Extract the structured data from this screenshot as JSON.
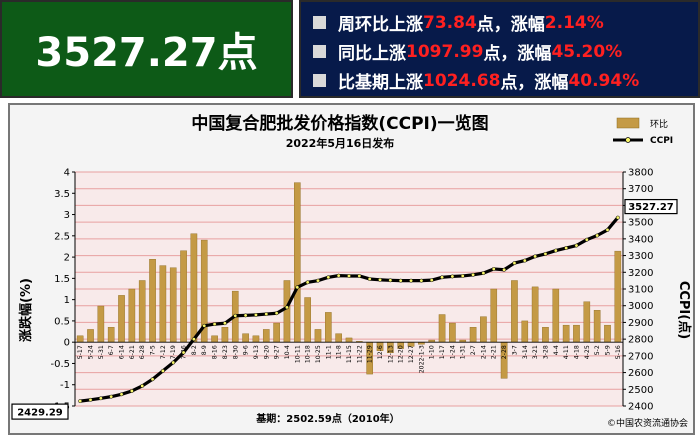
{
  "banner": {
    "value": "3527.27点"
  },
  "stats": [
    {
      "prefix": "周环比上涨",
      "num1": "73.84",
      "mid": "点，涨幅",
      "num2": "2.14%"
    },
    {
      "prefix": "同比上涨",
      "num1": "1097.99",
      "mid": "点，涨幅",
      "num2": "45.20%"
    },
    {
      "prefix": "比基期上涨",
      "num1": "1024.68",
      "mid": "点，涨幅",
      "num2": "40.94%"
    }
  ],
  "colors": {
    "bar": "#c49a45",
    "line": "#000000",
    "marker": "#f6f46a",
    "grid": "#e8a0a0",
    "plot_bg": "#f8eaea",
    "banner_green": "#0d5a17",
    "banner_navy": "#071a4a",
    "highlight": "#ff2020"
  },
  "chart_data": {
    "type": "bar+line",
    "title": "中国复合肥批发价格指数(CCPI)一览图",
    "subtitle": "2022年5月16日发布",
    "ylabel_left": "涨跌幅(%)",
    "ylabel_right": "CCPI(点)",
    "ylim_left": [
      -1.5,
      4
    ],
    "yticks_left": [
      "-1.5",
      "-1",
      "-0.5",
      "0",
      "0.5",
      "1",
      "1.5",
      "2",
      "2.5",
      "3",
      "3.5",
      "4"
    ],
    "ylim_right": [
      2400,
      3800
    ],
    "yticks_right": [
      "2400",
      "2500",
      "2600",
      "2700",
      "2800",
      "2900",
      "3000",
      "3100",
      "3200",
      "3300",
      "3400",
      "3500",
      "3600",
      "3700",
      "3800"
    ],
    "legend": {
      "position": "top-right",
      "bar_label": "环比",
      "line_label": "CCPI"
    },
    "x_tick_labels": [
      "5-17",
      "5-24",
      "5-31",
      "6-7",
      "6-14",
      "6-21",
      "6-28",
      "7-5",
      "7-12",
      "7-19",
      "7-26",
      "8-2",
      "8-9",
      "8-16",
      "8-23",
      "8-30",
      "9-6",
      "9-13",
      "9-20",
      "9-27",
      "10-4",
      "10-11",
      "10-18",
      "10-25",
      "11-1",
      "11-8",
      "11-15",
      "11-22",
      "11-29",
      "12-6",
      "12-13",
      "12-20",
      "12-27",
      "2022-1-3",
      "1-10",
      "1-17",
      "1-24",
      "1-31",
      "2-7",
      "2-14",
      "2-21",
      "2-28",
      "3-7",
      "3-14",
      "3-21",
      "3-28",
      "4-4",
      "4-11",
      "4-18",
      "4-25",
      "5-2",
      "5-9",
      "5-16"
    ],
    "tick_label_every": 1,
    "series": [
      {
        "name": "环比",
        "kind": "bar",
        "values": [
          0.15,
          0.3,
          0.85,
          0.35,
          1.1,
          1.25,
          1.45,
          1.95,
          1.8,
          1.75,
          2.15,
          2.55,
          2.4,
          0.15,
          0.35,
          1.2,
          0.2,
          0.15,
          0.3,
          0.45,
          1.45,
          3.75,
          1.05,
          0.3,
          0.7,
          0.2,
          0.1,
          0.02,
          -0.75,
          -0.2,
          -0.25,
          -0.15,
          -0.1,
          -0.05,
          0.05,
          0.65,
          0.45,
          0.05,
          0.35,
          0.6,
          1.25,
          -0.85,
          1.45,
          0.5,
          1.3,
          0.35,
          1.25,
          0.4,
          0.4,
          0.95,
          0.75,
          0.4,
          2.14
        ]
      },
      {
        "name": "CCPI",
        "kind": "line",
        "values": [
          2429.29,
          2437,
          2446,
          2456,
          2470,
          2490,
          2520,
          2560,
          2610,
          2660,
          2720,
          2800,
          2880,
          2890,
          2895,
          2940,
          2942,
          2945,
          2950,
          2955,
          2990,
          3110,
          3140,
          3150,
          3170,
          3180,
          3178,
          3178,
          3160,
          3155,
          3152,
          3150,
          3150,
          3150,
          3153,
          3170,
          3175,
          3178,
          3185,
          3195,
          3220,
          3215,
          3255,
          3270,
          3295,
          3310,
          3330,
          3345,
          3360,
          3395,
          3420,
          3453.43,
          3527.27
        ]
      }
    ],
    "annotations": {
      "last_value": "3527.27",
      "first_value": "2429.29"
    },
    "footer_base": "基期：2502.59点（2010年）",
    "copyright": "©中国农资流通协会"
  }
}
